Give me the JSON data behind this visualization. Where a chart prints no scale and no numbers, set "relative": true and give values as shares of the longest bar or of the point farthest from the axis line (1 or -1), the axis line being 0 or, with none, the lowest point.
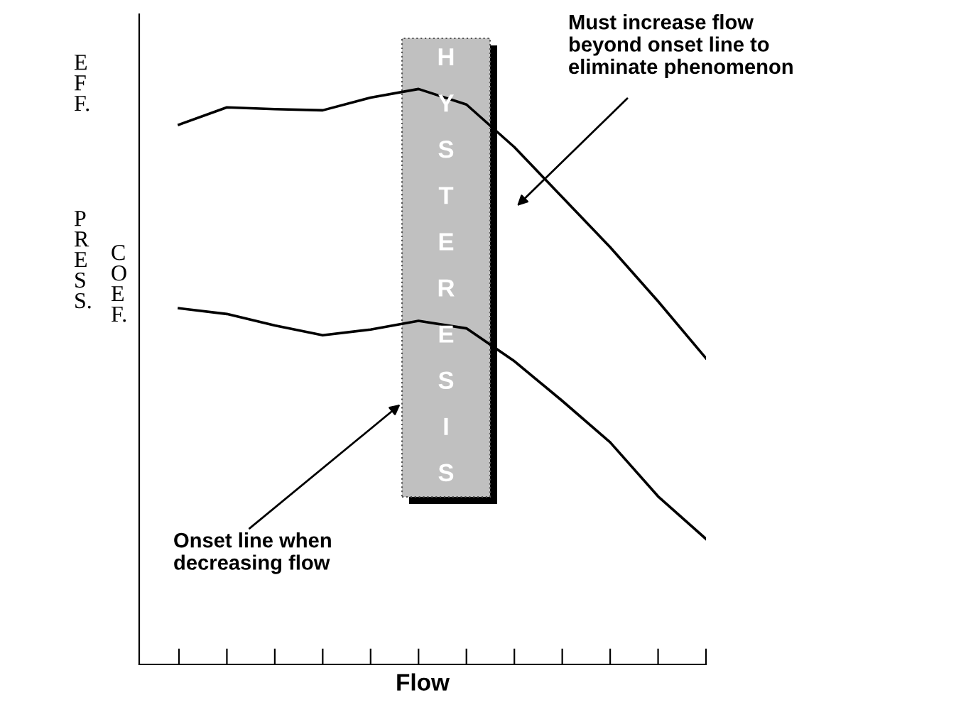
{
  "chart_data": {
    "type": "line",
    "relative": true,
    "xlabel": "Flow",
    "categories": [
      null,
      null,
      null,
      null,
      null,
      null,
      null,
      null,
      null,
      null,
      null,
      null
    ],
    "series": [
      {
        "color": "#000000",
        "values": [
          0.938,
          0.968,
          0.965,
          0.963,
          0.985,
          1,
          0.973,
          0.899,
          0.812,
          0.725,
          0.631,
          0.532
        ]
      },
      {
        "color": "#000000",
        "values": [
          0.619,
          0.609,
          0.589,
          0.572,
          0.582,
          0.597,
          0.584,
          0.527,
          0.458,
          0.386,
          0.292,
          0.218
        ]
      }
    ],
    "annotations": [
      "Must increase flow\nbeyond onset line to\neliminate phenomenon",
      "Onset line when\ndecreasing flow",
      "HYSTERESIS",
      "EFF.",
      "PRESS.",
      "COEF."
    ]
  }
}
